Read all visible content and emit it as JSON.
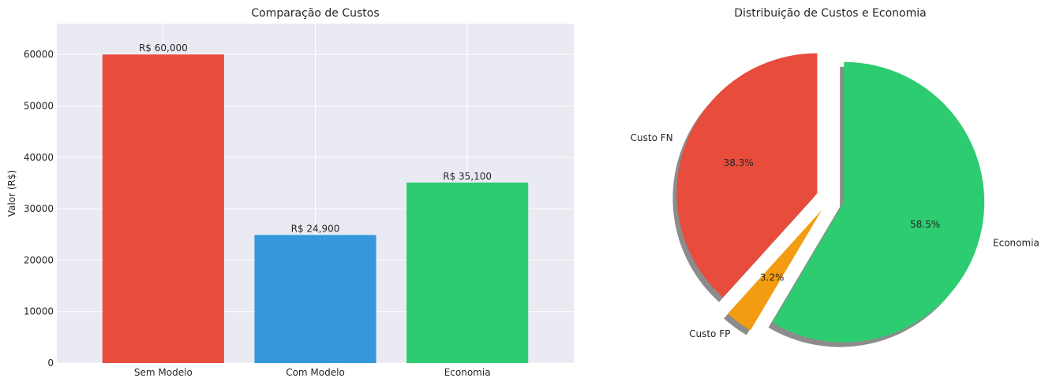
{
  "chart_data": [
    {
      "type": "bar",
      "title": "Comparação de Custos",
      "ylabel": "Valor (R$)",
      "xlabel": "",
      "categories": [
        "Sem Modelo",
        "Com Modelo",
        "Economia"
      ],
      "values": [
        60000,
        24900,
        35100
      ],
      "value_labels": [
        "R$ 60,000",
        "R$ 24,900",
        "R$ 35,100"
      ],
      "colors": [
        "#e74c3c",
        "#3498db",
        "#2ecc71"
      ],
      "ylim": [
        0,
        66000
      ],
      "yticks": [
        0,
        10000,
        20000,
        30000,
        40000,
        50000,
        60000
      ],
      "ytick_labels": [
        "0",
        "10000",
        "20000",
        "30000",
        "40000",
        "50000",
        "60000"
      ],
      "grid": true,
      "background": "#eaeaf2"
    },
    {
      "type": "pie",
      "title": "Distribuição de Custos e Economia",
      "labels": [
        "Custo FN",
        "Custo FP",
        "Economia"
      ],
      "values": [
        38.3,
        3.2,
        58.5
      ],
      "pct_labels": [
        "38.3%",
        "3.2%",
        "58.5%"
      ],
      "colors": [
        "#e74c3c",
        "#f39c12",
        "#2ecc71"
      ],
      "explode": [
        0.1,
        0.1,
        0.1
      ],
      "shadow": true,
      "start_angle": 90
    }
  ]
}
